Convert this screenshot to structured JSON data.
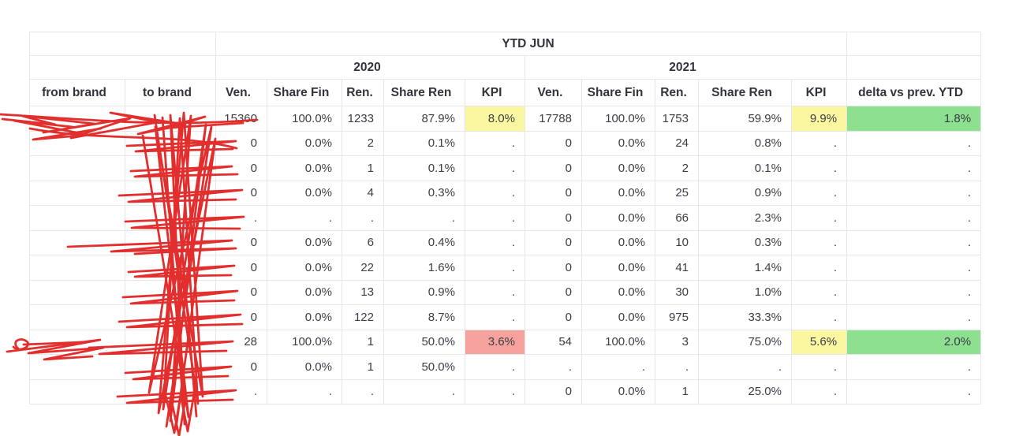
{
  "table": {
    "group_header": "YTD JUN",
    "years": [
      "2020",
      "2021"
    ],
    "from_brand_header": "from brand",
    "to_brand_header": "to brand",
    "metric_headers": [
      "Ven.",
      "Share Fin",
      "Ren.",
      "Share Ren",
      "KPI"
    ],
    "delta_header": "delta vs prev. YTD",
    "rows": [
      {
        "cells": [
          "",
          "",
          "15360",
          "100.0%",
          "1233",
          "87.9%",
          "8.0%",
          "17788",
          "100.0%",
          "1753",
          "59.9%",
          "9.9%",
          "1.8%"
        ],
        "highlights": {
          "6": "yellow",
          "11": "yellow",
          "12": "green"
        },
        "redacted": true
      },
      {
        "cells": [
          "",
          "",
          "0",
          "0.0%",
          "2",
          "0.1%",
          ".",
          "0",
          "0.0%",
          "24",
          "0.8%",
          ".",
          "."
        ],
        "redacted": true
      },
      {
        "cells": [
          "",
          "",
          "0",
          "0.0%",
          "1",
          "0.1%",
          ".",
          "0",
          "0.0%",
          "2",
          "0.1%",
          ".",
          "."
        ],
        "redacted": true
      },
      {
        "cells": [
          "",
          "",
          "0",
          "0.0%",
          "4",
          "0.3%",
          ".",
          "0",
          "0.0%",
          "25",
          "0.9%",
          ".",
          "."
        ],
        "redacted": true
      },
      {
        "cells": [
          "",
          "",
          ".",
          ".",
          ".",
          ".",
          ".",
          "0",
          "0.0%",
          "66",
          "2.3%",
          ".",
          "."
        ],
        "redacted": true
      },
      {
        "cells": [
          "",
          "",
          "0",
          "0.0%",
          "6",
          "0.4%",
          ".",
          "0",
          "0.0%",
          "10",
          "0.3%",
          ".",
          "."
        ],
        "redacted": true
      },
      {
        "cells": [
          "",
          "",
          "0",
          "0.0%",
          "22",
          "1.6%",
          ".",
          "0",
          "0.0%",
          "41",
          "1.4%",
          ".",
          "."
        ],
        "redacted": true
      },
      {
        "cells": [
          "",
          "",
          "0",
          "0.0%",
          "13",
          "0.9%",
          ".",
          "0",
          "0.0%",
          "30",
          "1.0%",
          ".",
          "."
        ],
        "redacted": true
      },
      {
        "cells": [
          "",
          "",
          "0",
          "0.0%",
          "122",
          "8.7%",
          ".",
          "0",
          "0.0%",
          "975",
          "33.3%",
          ".",
          "."
        ],
        "redacted": true
      },
      {
        "cells": [
          "",
          "",
          "28",
          "100.0%",
          "1",
          "50.0%",
          "3.6%",
          "54",
          "100.0%",
          "3",
          "75.0%",
          "5.6%",
          "2.0%"
        ],
        "highlights": {
          "6": "red",
          "11": "yellow",
          "12": "green"
        },
        "redacted": true
      },
      {
        "cells": [
          "",
          "",
          "0",
          "0.0%",
          "1",
          "50.0%",
          ".",
          ".",
          ".",
          ".",
          ".",
          ".",
          "."
        ],
        "redacted": true
      },
      {
        "cells": [
          "",
          "",
          ".",
          ".",
          ".",
          ".",
          ".",
          "0",
          "0.0%",
          "1",
          "25.0%",
          ".",
          "."
        ],
        "redacted": true
      }
    ]
  },
  "colors": {
    "highlight_yellow": "#fbf7a1",
    "highlight_red": "#f5a29e",
    "highlight_green": "#8ce08f",
    "redaction_red": "#e12726",
    "grid_line": "#e7e7e7",
    "header_text": "#33333d",
    "body_text": "#3c3c46"
  }
}
